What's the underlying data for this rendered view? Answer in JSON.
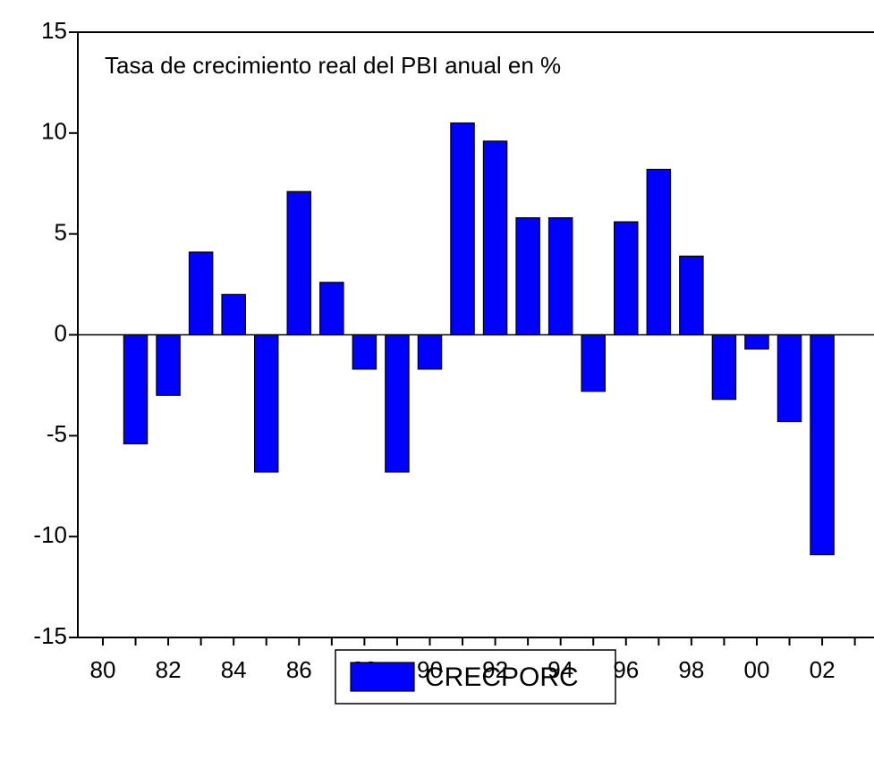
{
  "chart_data": {
    "type": "bar",
    "title": "Tasa de crecimiento real del PBI anual en %",
    "categories": [
      "80",
      null,
      "82",
      null,
      "84",
      null,
      "86",
      null,
      "88",
      null,
      "90",
      null,
      "92",
      null,
      "94",
      null,
      "96",
      null,
      "98",
      null,
      "00",
      null,
      "02",
      null
    ],
    "series": [
      {
        "name": "CRECPORC",
        "color": "#0000ff",
        "values": [
          null,
          -5.4,
          -3.0,
          4.1,
          2.0,
          -6.8,
          7.1,
          2.6,
          -1.7,
          -6.8,
          -1.7,
          10.5,
          9.6,
          5.8,
          5.8,
          -2.8,
          5.6,
          8.2,
          3.9,
          -3.2,
          -0.7,
          -4.3,
          -10.9,
          null
        ]
      }
    ],
    "ylim": [
      -15,
      15
    ],
    "yticks": [
      -15,
      -10,
      -5,
      0,
      5,
      10,
      15
    ]
  }
}
